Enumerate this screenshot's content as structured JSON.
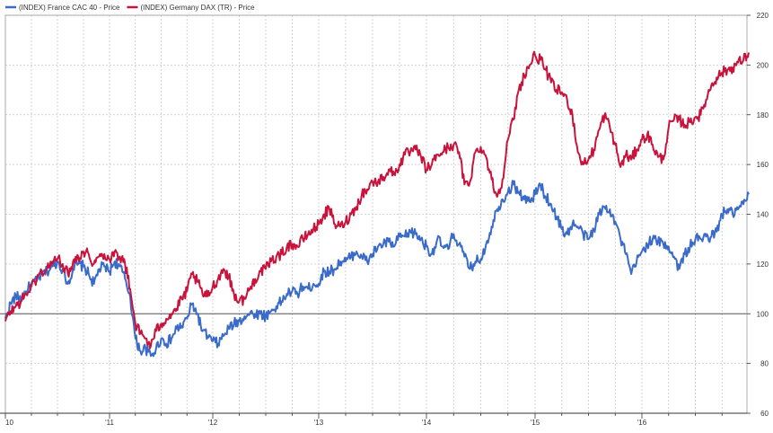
{
  "chart_data": {
    "type": "line",
    "legend_position": "top-left",
    "grid": true,
    "y_axis_position": "right",
    "ylim": [
      60,
      220
    ],
    "y_ticks": [
      60,
      80,
      100,
      120,
      140,
      160,
      180,
      200,
      220
    ],
    "y_tick_labels": [
      "60",
      "80",
      "100",
      "120",
      "140",
      "160",
      "180",
      "200",
      "220"
    ],
    "reference_line": 100,
    "xlim": [
      2010.0,
      2017.0
    ],
    "x_ticks": [
      2010,
      2011,
      2012,
      2013,
      2014,
      2015,
      2016
    ],
    "x_tick_labels": [
      "10",
      "'11",
      "'12",
      "'13",
      "'14",
      "'15",
      "'16"
    ],
    "series": [
      {
        "name": "(INDEX)  France  CAC  40 - Price",
        "color": "#3a6bc8",
        "x": [
          2010.0,
          2010.05,
          2010.1,
          2010.15,
          2010.2,
          2010.25,
          2010.3,
          2010.35,
          2010.4,
          2010.45,
          2010.5,
          2010.55,
          2010.6,
          2010.65,
          2010.7,
          2010.75,
          2010.8,
          2010.85,
          2010.9,
          2010.95,
          2011.0,
          2011.05,
          2011.1,
          2011.15,
          2011.2,
          2011.25,
          2011.3,
          2011.35,
          2011.4,
          2011.45,
          2011.5,
          2011.55,
          2011.6,
          2011.65,
          2011.7,
          2011.75,
          2011.8,
          2011.85,
          2011.9,
          2011.95,
          2012.0,
          2012.05,
          2012.1,
          2012.15,
          2012.2,
          2012.25,
          2012.3,
          2012.35,
          2012.4,
          2012.45,
          2012.5,
          2012.55,
          2012.6,
          2012.65,
          2012.7,
          2012.75,
          2012.8,
          2012.85,
          2012.9,
          2012.95,
          2013.0,
          2013.05,
          2013.1,
          2013.15,
          2013.2,
          2013.25,
          2013.3,
          2013.35,
          2013.4,
          2013.45,
          2013.5,
          2013.55,
          2013.6,
          2013.65,
          2013.7,
          2013.75,
          2013.8,
          2013.85,
          2013.9,
          2013.95,
          2014.0,
          2014.05,
          2014.1,
          2014.15,
          2014.2,
          2014.25,
          2014.3,
          2014.35,
          2014.4,
          2014.45,
          2014.5,
          2014.55,
          2014.6,
          2014.65,
          2014.7,
          2014.75,
          2014.8,
          2014.85,
          2014.9,
          2014.95,
          2015.0,
          2015.05,
          2015.1,
          2015.15,
          2015.2,
          2015.25,
          2015.3,
          2015.35,
          2015.4,
          2015.45,
          2015.5,
          2015.55,
          2015.6,
          2015.65,
          2015.7,
          2015.75,
          2015.8,
          2015.85,
          2015.9,
          2015.95,
          2016.0,
          2016.05,
          2016.1,
          2016.15,
          2016.2,
          2016.25,
          2016.3,
          2016.35,
          2016.4,
          2016.45,
          2016.5,
          2016.55,
          2016.6,
          2016.65,
          2016.7,
          2016.75,
          2016.8,
          2016.85,
          2016.9,
          2016.95,
          2017.0
        ],
        "values": [
          98,
          104,
          107,
          106,
          109,
          112,
          113,
          116,
          117,
          119,
          121,
          118,
          112,
          118,
          120,
          119,
          116,
          112,
          118,
          119,
          117,
          121,
          119,
          114,
          107,
          90,
          85,
          86,
          83,
          86,
          90,
          88,
          90,
          94,
          95,
          98,
          104,
          100,
          93,
          91,
          89,
          88,
          91,
          94,
          96,
          97,
          99,
          100,
          100,
          100,
          99,
          101,
          103,
          105,
          108,
          109,
          108,
          111,
          110,
          112,
          112,
          117,
          117,
          118,
          121,
          121,
          123,
          125,
          123,
          121,
          124,
          127,
          128,
          129,
          127,
          131,
          131,
          133,
          132,
          130,
          127,
          124,
          130,
          127,
          126,
          132,
          128,
          123,
          118,
          121,
          122,
          128,
          135,
          142,
          146,
          149,
          152,
          149,
          146,
          145,
          148,
          152,
          147,
          144,
          139,
          134,
          132,
          136,
          135,
          132,
          130,
          134,
          140,
          143,
          142,
          137,
          130,
          124,
          116,
          121,
          125,
          128,
          130,
          129,
          128,
          127,
          123,
          118,
          124,
          127,
          130,
          130,
          131,
          131,
          133,
          140,
          142,
          140,
          142,
          144,
          148
        ]
      },
      {
        "name": "(INDEX) Germany  DAX  (TR) - Price",
        "color": "#c8143c",
        "x": [
          2010.0,
          2010.05,
          2010.1,
          2010.15,
          2010.2,
          2010.25,
          2010.3,
          2010.35,
          2010.4,
          2010.45,
          2010.5,
          2010.55,
          2010.6,
          2010.65,
          2010.7,
          2010.75,
          2010.8,
          2010.85,
          2010.9,
          2010.95,
          2011.0,
          2011.05,
          2011.1,
          2011.15,
          2011.2,
          2011.25,
          2011.3,
          2011.35,
          2011.4,
          2011.45,
          2011.5,
          2011.55,
          2011.6,
          2011.65,
          2011.7,
          2011.75,
          2011.8,
          2011.85,
          2011.9,
          2011.95,
          2012.0,
          2012.05,
          2012.1,
          2012.15,
          2012.2,
          2012.25,
          2012.3,
          2012.35,
          2012.4,
          2012.45,
          2012.5,
          2012.55,
          2012.6,
          2012.65,
          2012.7,
          2012.75,
          2012.8,
          2012.85,
          2012.9,
          2012.95,
          2013.0,
          2013.05,
          2013.1,
          2013.15,
          2013.2,
          2013.25,
          2013.3,
          2013.35,
          2013.4,
          2013.45,
          2013.5,
          2013.55,
          2013.6,
          2013.65,
          2013.7,
          2013.75,
          2013.8,
          2013.85,
          2013.9,
          2013.95,
          2014.0,
          2014.05,
          2014.1,
          2014.15,
          2014.2,
          2014.25,
          2014.3,
          2014.35,
          2014.4,
          2014.45,
          2014.5,
          2014.55,
          2014.6,
          2014.65,
          2014.7,
          2014.75,
          2014.8,
          2014.85,
          2014.9,
          2014.95,
          2015.0,
          2015.05,
          2015.1,
          2015.15,
          2015.2,
          2015.25,
          2015.3,
          2015.35,
          2015.4,
          2015.45,
          2015.5,
          2015.55,
          2015.6,
          2015.65,
          2015.7,
          2015.75,
          2015.8,
          2015.85,
          2015.9,
          2015.95,
          2016.0,
          2016.05,
          2016.1,
          2016.15,
          2016.2,
          2016.25,
          2016.3,
          2016.35,
          2016.4,
          2016.45,
          2016.5,
          2016.55,
          2016.6,
          2016.65,
          2016.7,
          2016.75,
          2016.8,
          2016.85,
          2016.9,
          2016.95,
          2017.0
        ],
        "values": [
          97,
          101,
          103,
          105,
          108,
          111,
          114,
          117,
          118,
          121,
          122,
          120,
          116,
          121,
          123,
          125,
          124,
          120,
          123,
          124,
          122,
          125,
          123,
          120,
          110,
          96,
          92,
          90,
          87,
          93,
          96,
          98,
          100,
          102,
          106,
          109,
          116,
          113,
          108,
          107,
          111,
          114,
          118,
          115,
          108,
          105,
          106,
          110,
          114,
          117,
          118,
          121,
          123,
          124,
          127,
          128,
          127,
          130,
          132,
          134,
          136,
          140,
          142,
          136,
          135,
          137,
          140,
          143,
          148,
          150,
          153,
          153,
          155,
          158,
          156,
          160,
          164,
          165,
          166,
          163,
          158,
          160,
          164,
          165,
          167,
          168,
          165,
          152,
          153,
          165,
          167,
          163,
          154,
          147,
          154,
          170,
          178,
          190,
          196,
          200,
          204,
          202,
          198,
          193,
          190,
          189,
          186,
          180,
          165,
          160,
          162,
          166,
          174,
          180,
          175,
          168,
          159,
          164,
          162,
          166,
          170,
          172,
          168,
          163,
          162,
          175,
          178,
          178,
          176,
          177,
          179,
          180,
          186,
          192,
          195,
          197,
          198,
          199,
          201,
          202,
          205
        ]
      }
    ]
  }
}
